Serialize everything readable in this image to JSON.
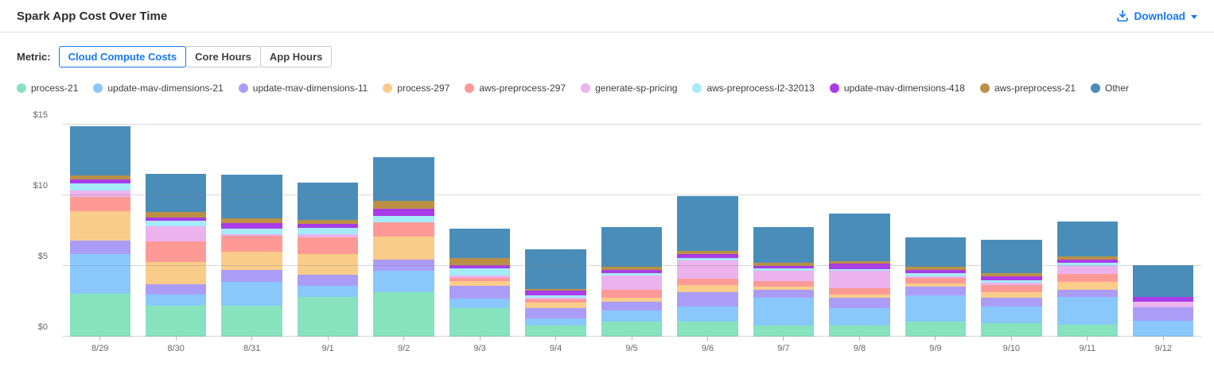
{
  "header": {
    "title": "Spark App Cost Over Time",
    "download_label": "Download"
  },
  "metric": {
    "label": "Metric:",
    "options": [
      {
        "label": "Cloud Compute Costs",
        "selected": true
      },
      {
        "label": "Core Hours",
        "selected": false
      },
      {
        "label": "App Hours",
        "selected": false
      }
    ]
  },
  "colors": {
    "accent_blue": "#1778F2",
    "grid": "#d9d9d9",
    "axis_text": "#666666"
  },
  "chart_data": {
    "type": "bar",
    "stacked": true,
    "title": "Spark App Cost Over Time",
    "xlabel": "",
    "ylabel": "",
    "ylim": [
      0,
      15.3
    ],
    "grid": true,
    "legend_position": "top",
    "yticks": [
      {
        "value": 0,
        "label": "$0"
      },
      {
        "value": 5,
        "label": "$5"
      },
      {
        "value": 10,
        "label": "$10"
      },
      {
        "value": 15,
        "label": "$15"
      }
    ],
    "categories": [
      "8/29",
      "8/30",
      "8/31",
      "9/1",
      "9/2",
      "9/3",
      "9/4",
      "9/5",
      "9/6",
      "9/7",
      "9/8",
      "9/9",
      "9/10",
      "9/11",
      "9/12"
    ],
    "series": [
      {
        "name": "process-21",
        "color": "#86E3BD",
        "values": [
          3.05,
          2.17,
          2.2,
          2.8,
          3.14,
          2.01,
          0.79,
          1.04,
          1.07,
          0.79,
          0.79,
          1.04,
          0.98,
          0.83,
          0
        ]
      },
      {
        "name": "update-mav-dimensions-21",
        "color": "#8AC7FB",
        "values": [
          2.78,
          0.83,
          1.7,
          0.77,
          1.54,
          0.69,
          0.51,
          0.79,
          1.09,
          1.97,
          1.26,
          1.88,
          1.18,
          1.99,
          1.11
        ]
      },
      {
        "name": "update-mav-dimensions-11",
        "color": "#AB9DF7",
        "values": [
          0.98,
          0.72,
          0.8,
          0.79,
          0.75,
          0.87,
          0.75,
          0.66,
          0.98,
          0.53,
          0.68,
          0.6,
          0.6,
          0.51,
          0.94
        ]
      },
      {
        "name": "process-297",
        "color": "#FACC8A",
        "values": [
          2.06,
          1.54,
          1.3,
          1.5,
          1.65,
          0.36,
          0.34,
          0.24,
          0.53,
          0.23,
          0.26,
          0.23,
          0.38,
          0.56,
          0
        ]
      },
      {
        "name": "aws-preprocess-297",
        "color": "#FD9A96",
        "values": [
          1.02,
          1.5,
          1.15,
          1.13,
          1.0,
          0.21,
          0.23,
          0.6,
          0.42,
          0.43,
          0.43,
          0.38,
          0.53,
          0.56,
          0
        ]
      },
      {
        "name": "generate-sp-pricing",
        "color": "#ECB2EE",
        "values": [
          0.45,
          1.03,
          0.1,
          0.28,
          0,
          0.17,
          0.15,
          1.0,
          1.31,
          0.73,
          1.22,
          0.15,
          0.13,
          0.53,
          0.43
        ]
      },
      {
        "name": "aws-preprocess-l2-32013",
        "color": "#A5EAF9",
        "values": [
          0.51,
          0.43,
          0.4,
          0.43,
          0.47,
          0.53,
          0.15,
          0.17,
          0.15,
          0.15,
          0.15,
          0.19,
          0.19,
          0.22,
          0
        ]
      },
      {
        "name": "update-mav-dimensions-418",
        "color": "#A93BE8",
        "values": [
          0.25,
          0.19,
          0.4,
          0.26,
          0.51,
          0.19,
          0.32,
          0.21,
          0.28,
          0.19,
          0.36,
          0.25,
          0.28,
          0.25,
          0.32
        ]
      },
      {
        "name": "aws-preprocess-21",
        "color": "#BB9045",
        "values": [
          0.32,
          0.43,
          0.3,
          0.28,
          0.56,
          0.51,
          0.13,
          0.23,
          0.23,
          0.23,
          0.19,
          0.23,
          0.23,
          0.23,
          0
        ]
      },
      {
        "name": "Other",
        "color": "#4A8DBA",
        "values": [
          3.48,
          2.65,
          3.1,
          2.63,
          3.06,
          2.12,
          2.78,
          2.82,
          3.89,
          2.5,
          3.38,
          2.05,
          2.37,
          2.48,
          2.26
        ]
      }
    ]
  }
}
